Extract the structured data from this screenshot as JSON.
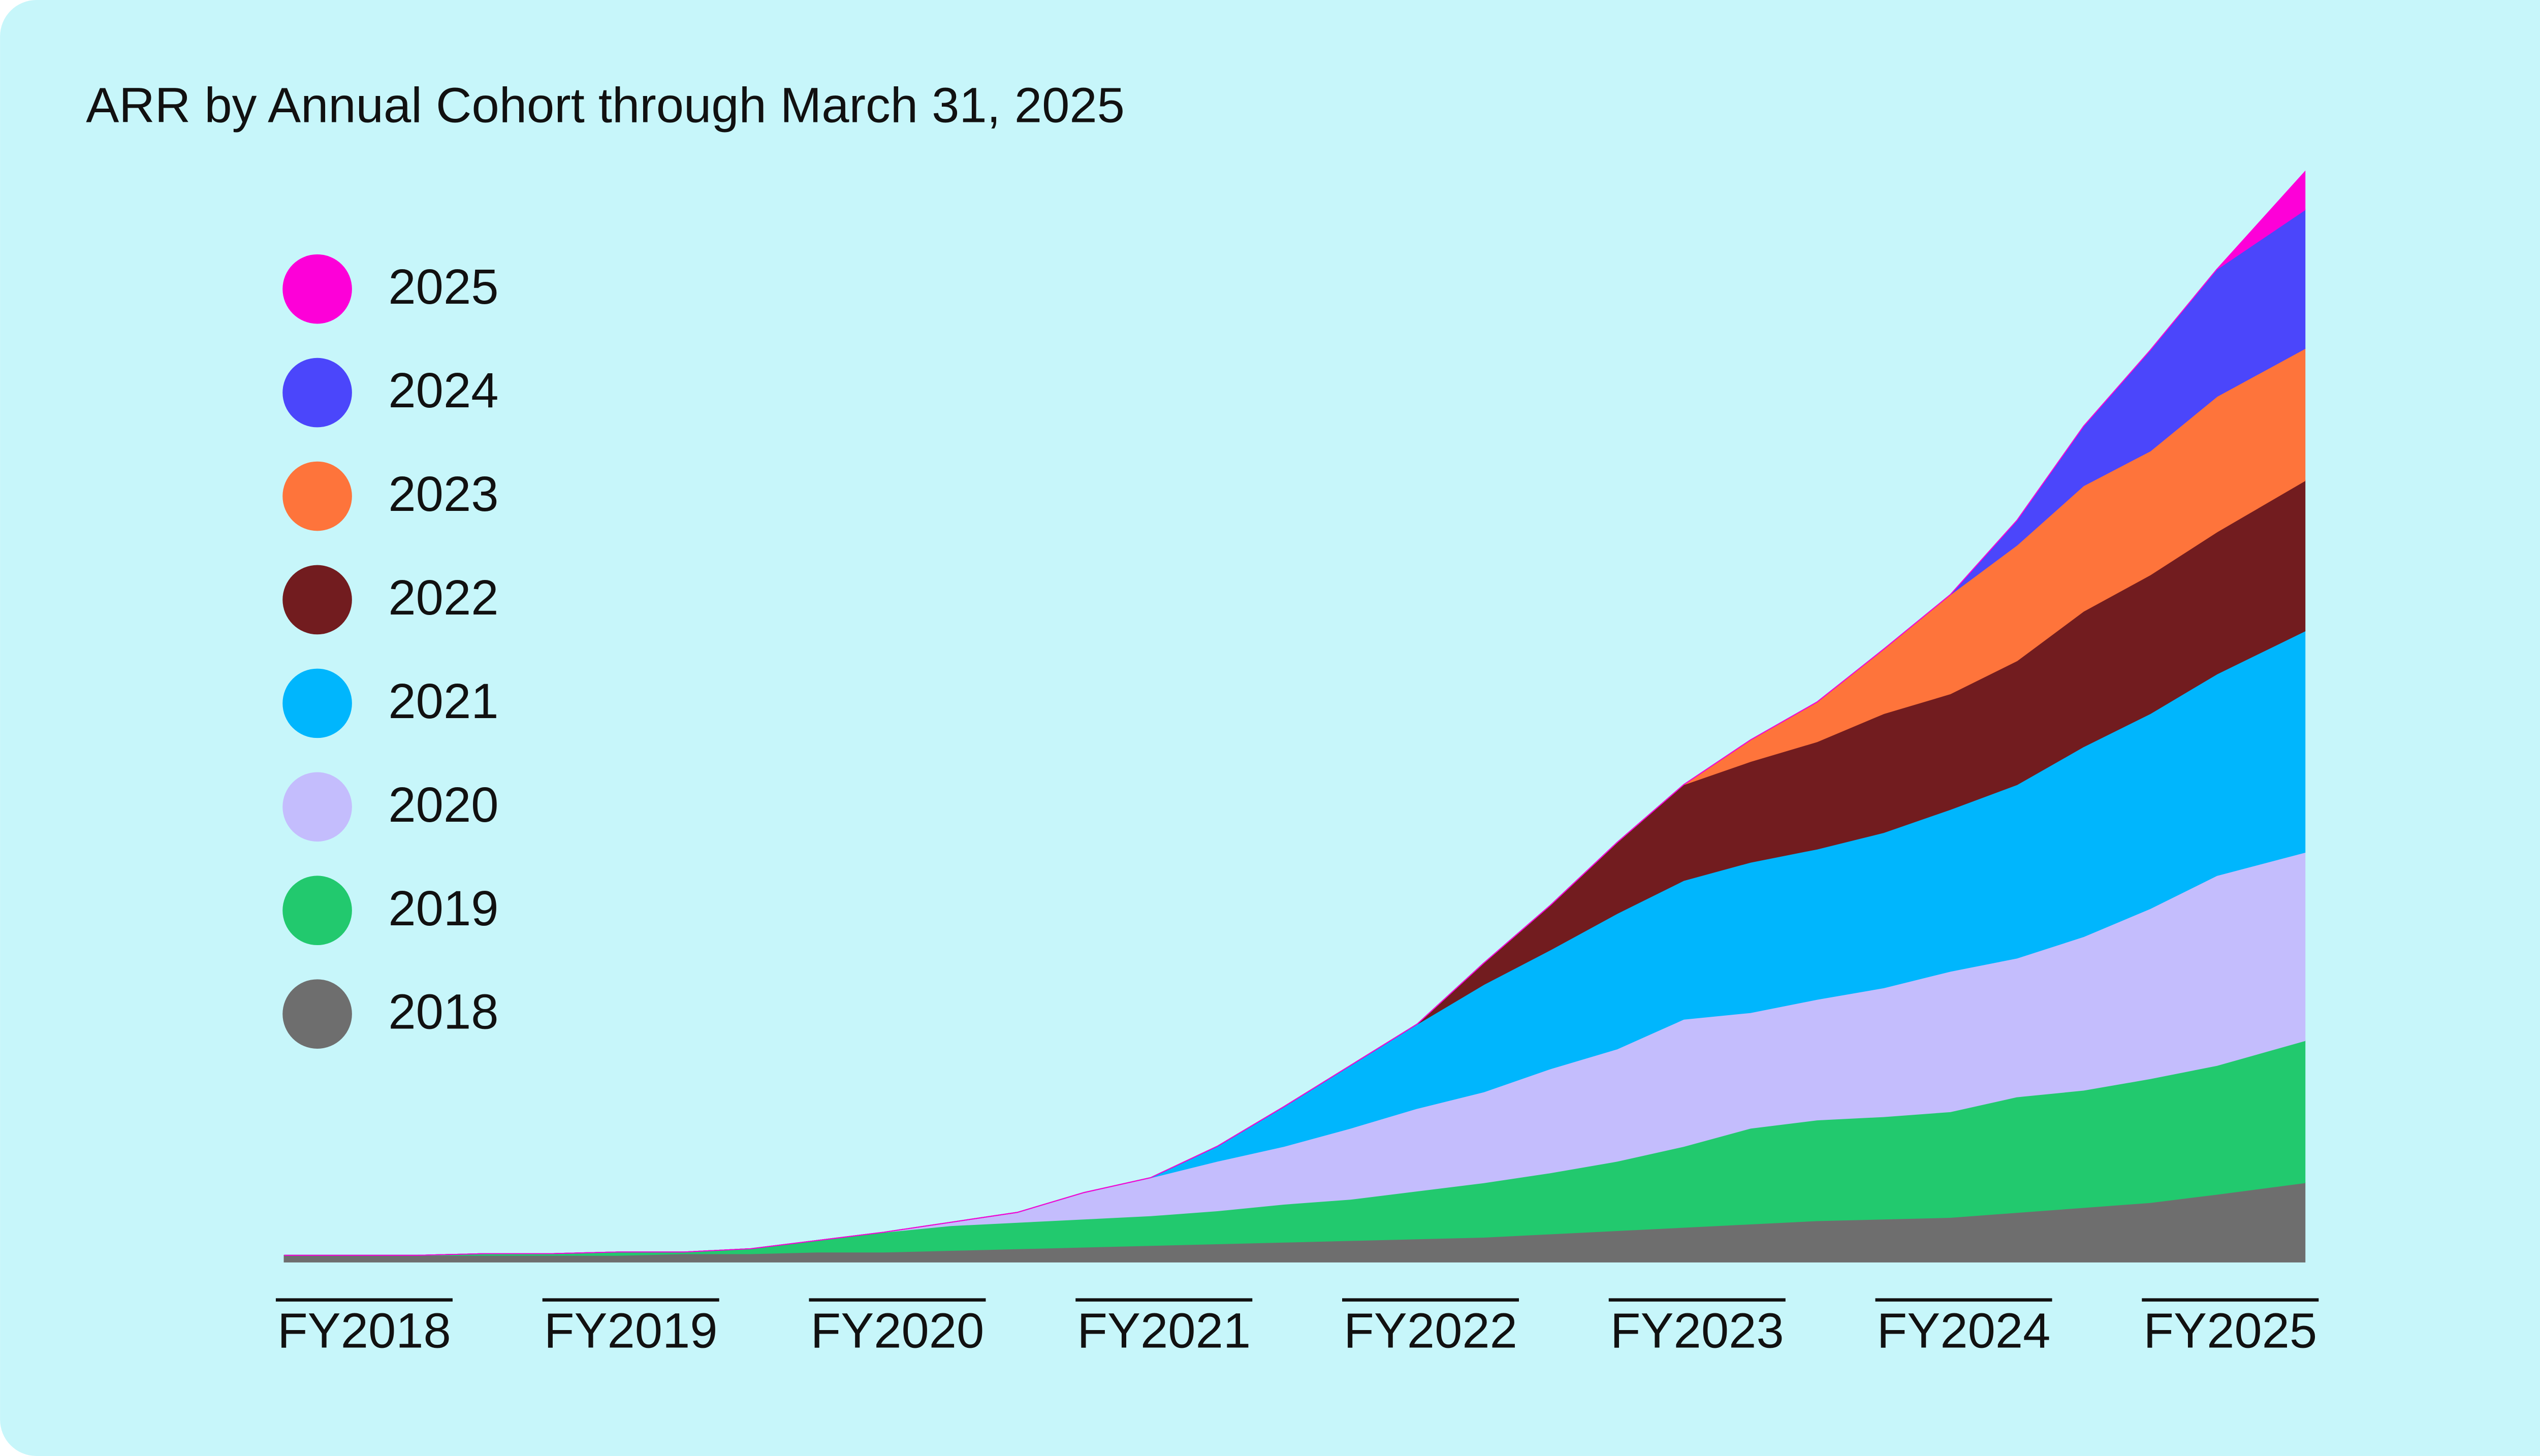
{
  "chart_data": {
    "type": "stacked_area",
    "title": "ARR by Annual Cohort through March 31, 2025",
    "x": [
      2017.7,
      2017.95,
      2018.2,
      2018.45,
      2018.7,
      2018.95,
      2019.2,
      2019.45,
      2019.7,
      2019.95,
      2020.2,
      2020.45,
      2020.7,
      2020.95,
      2021.2,
      2021.45,
      2021.7,
      2021.95,
      2022.2,
      2022.45,
      2022.7,
      2022.95,
      2023.2,
      2023.45,
      2023.7,
      2023.95,
      2024.2,
      2024.45,
      2024.7,
      2024.95,
      2025.28
    ],
    "xlim": [
      2017.7,
      2025.28
    ],
    "xticks": [
      {
        "value": 2018,
        "label": "FY2018"
      },
      {
        "value": 2019,
        "label": "FY2019"
      },
      {
        "value": 2020,
        "label": "FY2020"
      },
      {
        "value": 2021,
        "label": "FY2021"
      },
      {
        "value": 2022,
        "label": "FY2022"
      },
      {
        "value": 2023,
        "label": "FY2023"
      },
      {
        "value": 2024,
        "label": "FY2024"
      },
      {
        "value": 2025,
        "label": "FY2025"
      }
    ],
    "ylim": [
      0,
      660
    ],
    "series": [
      {
        "name": "2018",
        "color": "#6e6e6e",
        "values": [
          4,
          4,
          4,
          4,
          4,
          4,
          5,
          5,
          6,
          6,
          7,
          8,
          9,
          10,
          11,
          12,
          13,
          14,
          15,
          17,
          19,
          21,
          23,
          25,
          26,
          27,
          30,
          33,
          36,
          41,
          48
        ]
      },
      {
        "name": "2019",
        "color": "#22c96e",
        "values": [
          0,
          0,
          0,
          1,
          1,
          2,
          1,
          3,
          7,
          12,
          15,
          16,
          17,
          18,
          20,
          23,
          25,
          29,
          33,
          37,
          42,
          49,
          58,
          61,
          62,
          64,
          70,
          71,
          75,
          78,
          86
        ]
      },
      {
        "name": "2020",
        "color": "#c4bdfd",
        "values": [
          0,
          0,
          0,
          0,
          0,
          0,
          0,
          0,
          0,
          0,
          2,
          6,
          16,
          23,
          30,
          35,
          43,
          50,
          55,
          63,
          68,
          77,
          70,
          73,
          78,
          85,
          84,
          93,
          103,
          115,
          114
        ]
      },
      {
        "name": "2021",
        "color": "#00b6fd",
        "values": [
          0,
          0,
          0,
          0,
          0,
          0,
          0,
          0,
          0,
          0,
          0,
          0,
          0,
          0,
          9,
          24,
          38,
          51,
          65,
          72,
          82,
          84,
          91,
          91,
          94,
          98,
          105,
          115,
          118,
          122,
          134
        ]
      },
      {
        "name": "2022",
        "color": "#721c1f",
        "values": [
          0,
          0,
          0,
          0,
          0,
          0,
          0,
          0,
          0,
          0,
          0,
          0,
          0,
          0,
          0,
          0,
          0,
          0,
          13,
          27,
          43,
          58,
          61,
          65,
          72,
          70,
          75,
          82,
          84,
          86,
          91
        ]
      },
      {
        "name": "2023",
        "color": "#fe743b",
        "values": [
          0,
          0,
          0,
          0,
          0,
          0,
          0,
          0,
          0,
          0,
          0,
          0,
          0,
          0,
          0,
          0,
          0,
          0,
          0,
          0,
          0,
          0,
          13,
          24,
          39,
          60,
          70,
          76,
          75,
          82,
          80
        ]
      },
      {
        "name": "2024",
        "color": "#4b46fb",
        "values": [
          0,
          0,
          0,
          0,
          0,
          0,
          0,
          0,
          0,
          0,
          0,
          0,
          0,
          0,
          0,
          0,
          0,
          0,
          0,
          0,
          0,
          0,
          0,
          0,
          0,
          0,
          15,
          36,
          61,
          77,
          84
        ]
      },
      {
        "name": "2025",
        "color": "#fd00d8",
        "values": [
          0,
          0,
          0,
          0,
          0,
          0,
          0,
          0,
          0,
          0,
          0,
          0,
          0,
          0,
          0,
          0,
          0,
          0,
          0,
          0,
          0,
          0,
          0,
          0,
          0,
          0,
          0,
          0,
          0,
          0,
          23
        ]
      }
    ]
  }
}
